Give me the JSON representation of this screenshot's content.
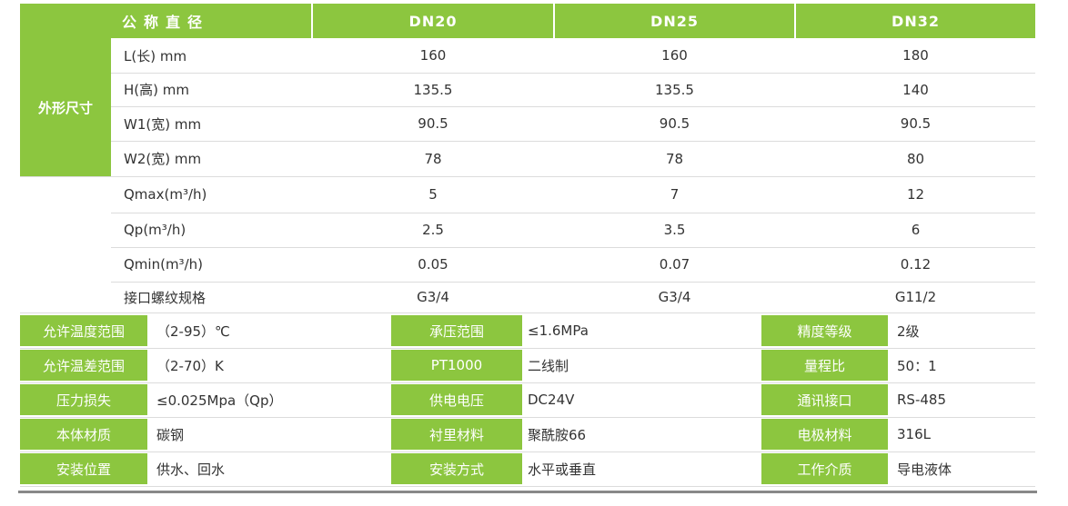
{
  "header": {
    "col0": "公称直径",
    "cols": [
      "DN20",
      "DN25",
      "DN32"
    ]
  },
  "dim_group_label": "外形尺寸",
  "rows": [
    {
      "label": "L(长)  mm",
      "values": [
        "160",
        "160",
        "180"
      ]
    },
    {
      "label": "H(高)   mm",
      "values": [
        "135.5",
        "135.5",
        "140"
      ]
    },
    {
      "label": "W1(宽)  mm",
      "values": [
        "90.5",
        "90.5",
        "90.5"
      ]
    },
    {
      "label": "W2(宽)  mm",
      "values": [
        "78",
        "78",
        "80"
      ]
    },
    {
      "label": "Qmax(m³/h)",
      "values": [
        "5",
        "7",
        "12"
      ]
    },
    {
      "label": "Qp(m³/h)",
      "values": [
        "2.5",
        "3.5",
        "6"
      ]
    },
    {
      "label": "Qmin(m³/h)",
      "values": [
        "0.05",
        "0.07",
        "0.12"
      ]
    },
    {
      "label": "接口螺纹规格",
      "values": [
        "G3/4",
        "G3/4",
        "G11/2"
      ]
    }
  ],
  "specs": [
    [
      {
        "k": "允许温度范围",
        "v": "（2-95）℃"
      },
      {
        "k": "承压范围",
        "v": "≤1.6MPa"
      },
      {
        "k": "精度等级",
        "v": "2级"
      }
    ],
    [
      {
        "k": "允许温差范围",
        "v": "（2-70）K"
      },
      {
        "k": "PT1000",
        "v": "二线制"
      },
      {
        "k": "量程比",
        "v": "50：1"
      }
    ],
    [
      {
        "k": "压力损失",
        "v": "≤0.025Mpa（Qp）"
      },
      {
        "k": "供电电压",
        "v": "DC24V"
      },
      {
        "k": "通讯接口",
        "v": "RS-485"
      }
    ],
    [
      {
        "k": "本体材质",
        "v": "碳钢"
      },
      {
        "k": "衬里材料",
        "v": "聚酰胺66"
      },
      {
        "k": "电极材料",
        "v": "316L"
      }
    ],
    [
      {
        "k": "安装位置",
        "v": "供水、回水"
      },
      {
        "k": "安装方式",
        "v": "水平或垂直"
      },
      {
        "k": "工作介质",
        "v": "导电液体"
      }
    ]
  ]
}
